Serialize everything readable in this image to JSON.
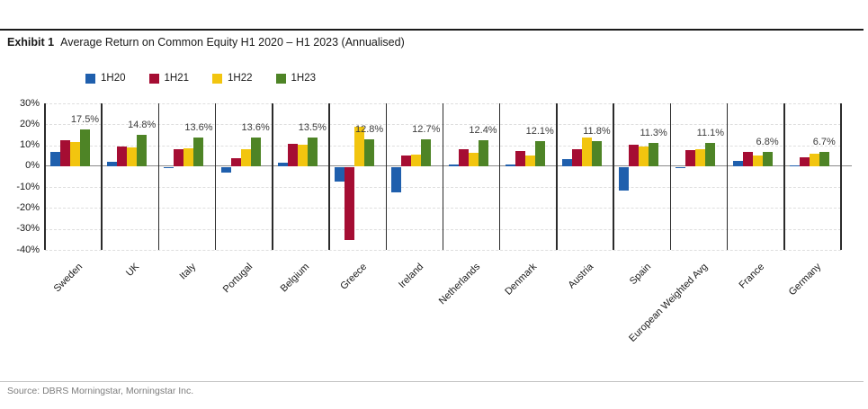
{
  "exhibit": {
    "label": "Exhibit 1",
    "title": "Average Return on Common Equity H1 2020 – H1 2023 (Annualised)"
  },
  "source": "Source: DBRS Morningstar, Morningstar Inc.",
  "chart_data": {
    "type": "bar",
    "title": "Average Return on Common Equity H1 2020 – H1 2023 (Annualised)",
    "categories": [
      "Sweden",
      "UK",
      "Italy",
      "Portugal",
      "Belgium",
      "Greece",
      "Ireland",
      "Netherlands",
      "Denmark",
      "Austria",
      "Spain",
      "European Weighted Avg",
      "France",
      "Germany"
    ],
    "series": [
      {
        "name": "1H20",
        "color": "#1F5FAD",
        "values": [
          7.0,
          2.0,
          -0.7,
          -2.7,
          1.5,
          -7.0,
          -12.3,
          1.0,
          1.0,
          3.5,
          -11.2,
          -0.5,
          2.7,
          0.5
        ]
      },
      {
        "name": "1H21",
        "color": "#A50D33",
        "values": [
          12.5,
          9.5,
          8.0,
          4.0,
          10.5,
          -35.0,
          5.0,
          8.3,
          7.2,
          7.9,
          10.4,
          7.8,
          7.0,
          4.2
        ]
      },
      {
        "name": "1H22",
        "color": "#F2C50F",
        "values": [
          11.5,
          9.0,
          8.7,
          8.3,
          10.3,
          19.0,
          5.7,
          6.2,
          5.3,
          13.6,
          9.4,
          8.3,
          5.2,
          5.8
        ]
      },
      {
        "name": "1H23",
        "color": "#4E8426",
        "values": [
          17.5,
          14.8,
          13.6,
          13.6,
          13.5,
          12.8,
          12.7,
          12.4,
          12.1,
          11.8,
          11.3,
          11.1,
          6.8,
          6.7
        ]
      }
    ],
    "data_labels": {
      "series": "1H23",
      "values": [
        "17.5%",
        "14.8%",
        "13.6%",
        "13.6%",
        "13.5%",
        "12.8%",
        "12.7%",
        "12.4%",
        "12.1%",
        "11.8%",
        "11.3%",
        "11.1%",
        "6.8%",
        "6.7%"
      ]
    },
    "y_ticks": [
      "30%",
      "20%",
      "10%",
      "0%",
      "-10%",
      "-20%",
      "-30%",
      "-40%"
    ],
    "ylim": [
      -40,
      30
    ],
    "xlabel": "",
    "ylabel": "",
    "grid": "horizontal-dashed",
    "legend_position": "top"
  }
}
